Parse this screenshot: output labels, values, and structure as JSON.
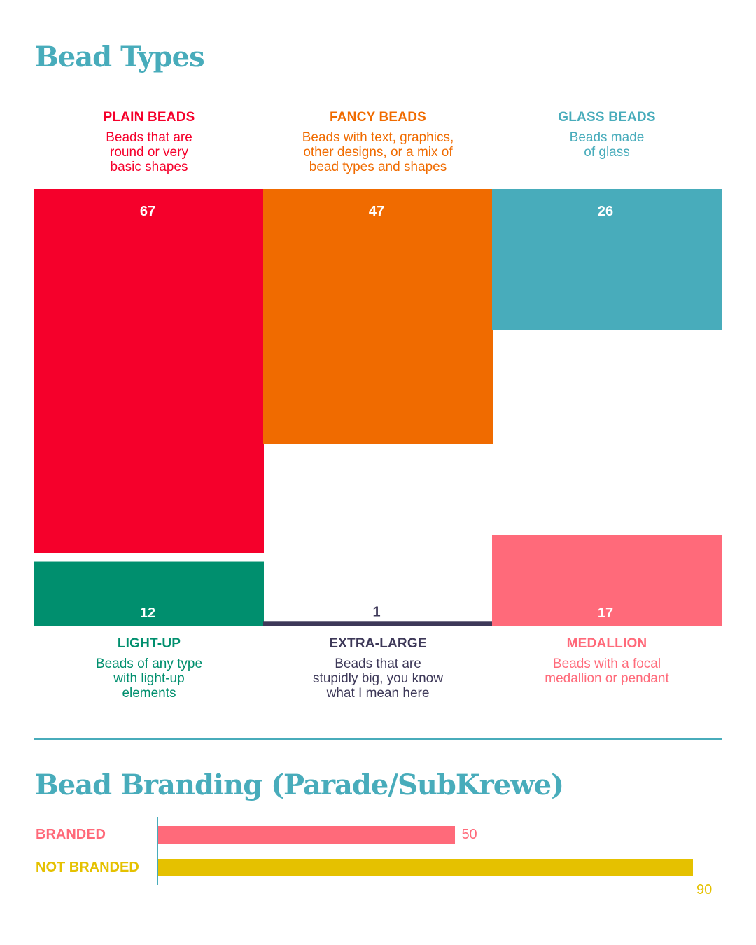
{
  "chart_data": [
    {
      "type": "bar",
      "title": "Bead Types",
      "categories": [
        {
          "key": "plain",
          "name": "PLAIN BEADS",
          "description": "Beads that are\nround or very\nbasic shapes",
          "value": 67,
          "color": "#f5002b",
          "row": "top",
          "col": 0
        },
        {
          "key": "fancy",
          "name": "FANCY BEADS",
          "description": "Beads with text, graphics,\nother designs, or a mix of\nbead types and shapes",
          "value": 47,
          "color": "#f06b00",
          "row": "top",
          "col": 1
        },
        {
          "key": "glass",
          "name": "GLASS BEADS",
          "description": "Beads made\nof glass",
          "value": 26,
          "color": "#48acbb",
          "row": "top",
          "col": 2
        },
        {
          "key": "lightup",
          "name": "LIGHT-UP",
          "description": "Beads of any type\nwith light-up\nelements",
          "value": 12,
          "color": "#008f6e",
          "row": "bottom",
          "col": 0
        },
        {
          "key": "xl",
          "name": "EXTRA-LARGE",
          "description": "Beads that are\nstupidly big, you know\nwhat I mean here",
          "value": 1,
          "color": "#3d3858",
          "row": "bottom",
          "col": 1
        },
        {
          "key": "medallion",
          "name": "MEDALLION",
          "description": "Beads with a focal\nmedallion or pendant",
          "value": 17,
          "color": "#ff6a7a",
          "row": "bottom",
          "col": 2
        }
      ]
    },
    {
      "type": "bar",
      "orientation": "horizontal",
      "title": "Bead Branding (Parade/SubKrewe)",
      "categories": [
        "BRANDED",
        "NOT BRANDED"
      ],
      "values": [
        50,
        90
      ],
      "colors": [
        "#ff6a7a",
        "#e5c100"
      ],
      "xlim": [
        0,
        90
      ]
    }
  ]
}
